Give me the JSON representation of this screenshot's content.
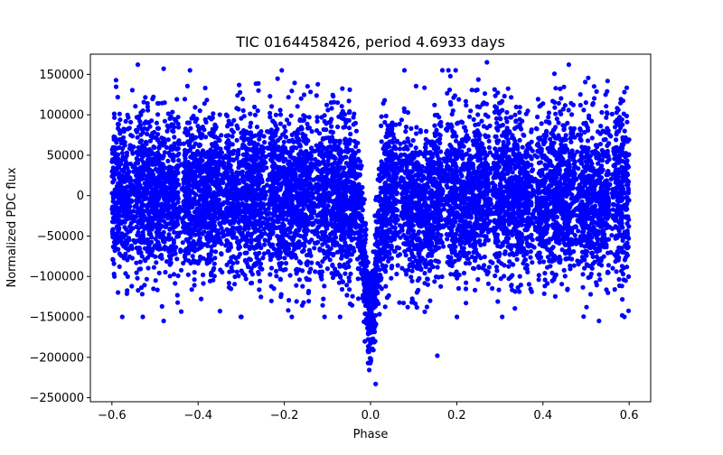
{
  "chart_data": {
    "type": "scatter",
    "title": "TIC 0164458426, period 4.6933 days",
    "xlabel": "Phase",
    "ylabel": "Normalized PDC flux",
    "xlim": [
      -0.65,
      0.65
    ],
    "ylim": [
      -255000,
      175000
    ],
    "x_ticks": [
      -0.6,
      -0.4,
      -0.2,
      0.0,
      0.2,
      0.4,
      0.6
    ],
    "x_tick_labels": [
      "−0.6",
      "−0.4",
      "−0.2",
      "0.0",
      "0.2",
      "0.4",
      "0.6"
    ],
    "y_ticks": [
      150000,
      100000,
      50000,
      0,
      -50000,
      -100000,
      -150000,
      -200000,
      -250000
    ],
    "y_tick_labels": [
      "150000",
      "100000",
      "50000",
      "0",
      "−50000",
      "−100000",
      "−150000",
      "−200000",
      "−250000"
    ],
    "grid": false,
    "marker_color": "#0000ff",
    "x_range": [
      -0.6,
      0.6
    ],
    "scatter_std": 50000,
    "transit": {
      "center_phase": 0.0,
      "depth": -195000,
      "half_width_phase": 0.02
    },
    "secondary_dip": {
      "center_phase": 0.12,
      "depth": -45000
    },
    "cadence_gap_phases": [
      -0.55,
      -0.44,
      -0.34,
      -0.24,
      -0.13,
      0.07,
      0.17,
      0.28,
      0.38,
      0.48,
      0.56
    ],
    "notable_points": [
      {
        "x": 0.012,
        "y": -233000
      },
      {
        "x": 0.155,
        "y": -198000
      },
      {
        "x": 0.27,
        "y": 165000
      },
      {
        "x": -0.54,
        "y": 162000
      },
      {
        "x": 0.46,
        "y": 162000
      },
      {
        "x": -0.48,
        "y": 157000
      },
      {
        "x": 0.53,
        "y": -155000
      },
      {
        "x": -0.48,
        "y": -155000
      }
    ]
  }
}
